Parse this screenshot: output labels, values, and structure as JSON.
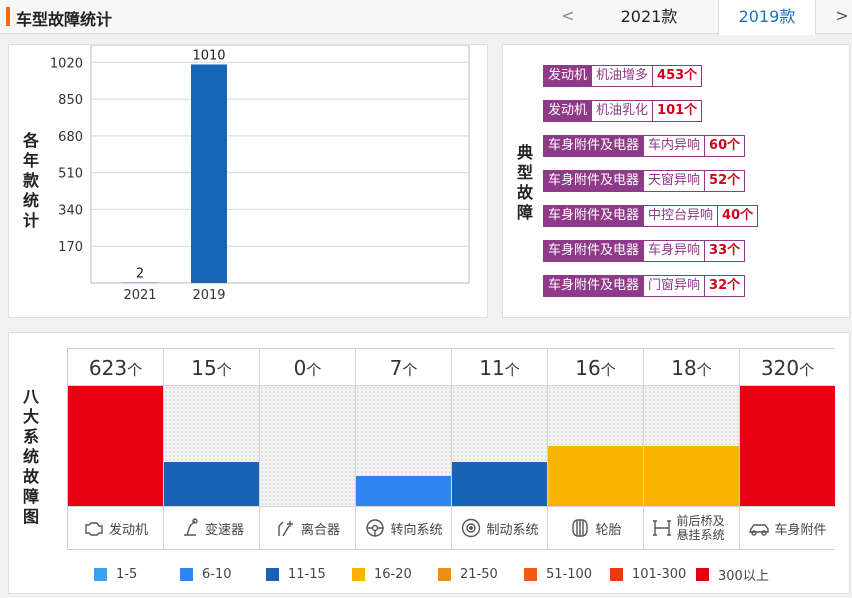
{
  "header": {
    "title": "车型故障统计",
    "prev_symbol": "<",
    "next_symbol": ">",
    "tabs": [
      {
        "label": "2021款",
        "active": false
      },
      {
        "label": "2019款",
        "active": true
      }
    ]
  },
  "year_panel": {
    "label": "各年款统计"
  },
  "chart_data": {
    "type": "bar",
    "categories": [
      "2021",
      "2019"
    ],
    "values": [
      2,
      1010
    ],
    "ylim": [
      0,
      1100
    ],
    "yticks": [
      170,
      340,
      510,
      680,
      850,
      1020
    ],
    "bar_color": "#1565b8",
    "grid": true
  },
  "faults_panel": {
    "label": "典型故障",
    "items": [
      {
        "category": "发动机",
        "name": "机油增多",
        "count": "453个"
      },
      {
        "category": "发动机",
        "name": "机油乳化",
        "count": "101个"
      },
      {
        "category": "车身附件及电器",
        "name": "车内异响",
        "count": "60个"
      },
      {
        "category": "车身附件及电器",
        "name": "天窗异响",
        "count": "52个"
      },
      {
        "category": "车身附件及电器",
        "name": "中控台异响",
        "count": "40个"
      },
      {
        "category": "车身附件及电器",
        "name": "车身异响",
        "count": "33个"
      },
      {
        "category": "车身附件及电器",
        "name": "门窗异响",
        "count": "32个"
      }
    ]
  },
  "systems_panel": {
    "label": "八大系统故障图",
    "unit": "个",
    "systems": [
      {
        "name": "发动机",
        "count": "623",
        "level": 1.0,
        "color": "#e60012",
        "icon": "engine-icon"
      },
      {
        "name": "变速器",
        "count": "15",
        "level": 0.37,
        "color": "#1a62b5",
        "icon": "gear-shift-icon"
      },
      {
        "name": "离合器",
        "count": "0",
        "level": 0,
        "color": "#e0e0e0",
        "icon": "clutch-pedal-icon"
      },
      {
        "name": "转向系统",
        "count": "7",
        "level": 0.25,
        "color": "#2e86f2",
        "icon": "steering-wheel-icon"
      },
      {
        "name": "制动系统",
        "count": "11",
        "level": 0.37,
        "color": "#1a62b5",
        "icon": "brake-disc-icon"
      },
      {
        "name": "轮胎",
        "count": "16",
        "level": 0.5,
        "color": "#f8b400",
        "icon": "tire-icon"
      },
      {
        "name": "前后桥及悬挂系统",
        "count": "18",
        "level": 0.5,
        "color": "#f8b400",
        "icon": "suspension-icon"
      },
      {
        "name": "车身附件",
        "count": "320",
        "level": 1.0,
        "color": "#e60012",
        "icon": "car-body-icon"
      }
    ],
    "legend": [
      {
        "label": "1-5",
        "color": "#3aa3f0"
      },
      {
        "label": "6-10",
        "color": "#2e86f2"
      },
      {
        "label": "11-15",
        "color": "#1a62b5"
      },
      {
        "label": "16-20",
        "color": "#f8b400"
      },
      {
        "label": "21-50",
        "color": "#f08c1c"
      },
      {
        "label": "51-100",
        "color": "#ef5a17"
      },
      {
        "label": "101-300",
        "color": "#e83a0c"
      },
      {
        "label": "300以上",
        "color": "#e60012"
      }
    ]
  }
}
